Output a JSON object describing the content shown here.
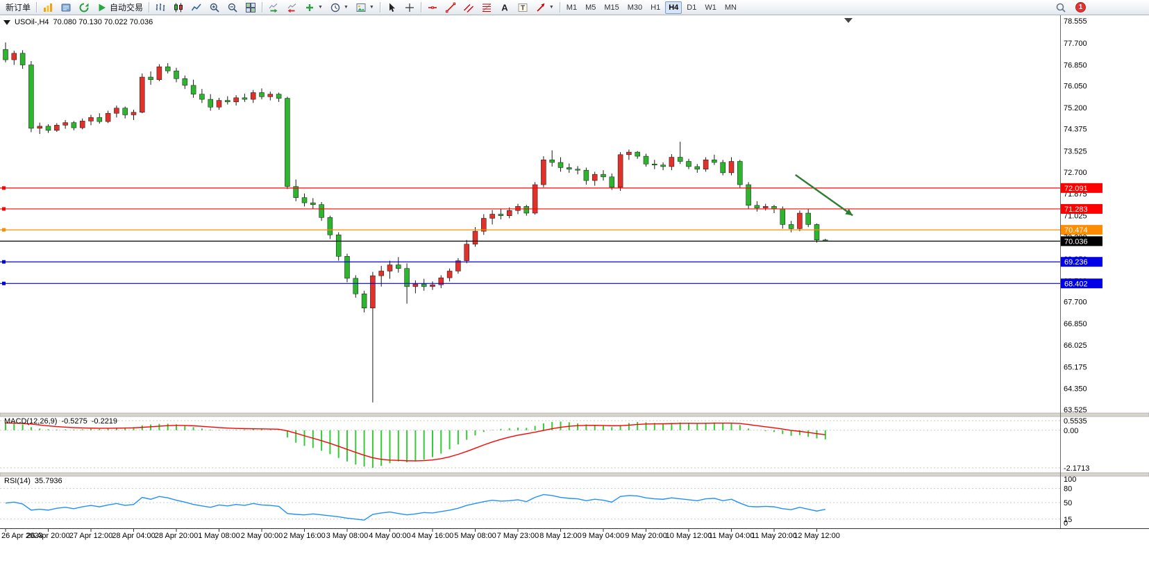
{
  "toolbar": {
    "notification_count": "1",
    "timeframes": [
      "M1",
      "M5",
      "M15",
      "M30",
      "H1",
      "H4",
      "D1",
      "W1",
      "MN"
    ],
    "active_timeframe": "H4",
    "groups": [
      {
        "items": [
          {
            "name": "new-order-button",
            "label": "新订单"
          }
        ]
      },
      {
        "items": [
          {
            "name": "new-chart-button",
            "icon": "new-chart-icon"
          },
          {
            "name": "profiles-button",
            "icon": "profiles-icon"
          },
          {
            "name": "refresh-button",
            "icon": "refresh-icon"
          },
          {
            "name": "autotrading-button",
            "label": "自动交易",
            "icon": "play-icon"
          }
        ]
      },
      {
        "items": [
          {
            "name": "bar-chart-button",
            "icon": "bar-chart-icon"
          },
          {
            "name": "candlestick-button",
            "icon": "candlestick-icon"
          },
          {
            "name": "line-chart-button",
            "icon": "line-chart-icon"
          },
          {
            "name": "zoom-in-button",
            "icon": "zoom-in-icon"
          },
          {
            "name": "zoom-out-button",
            "icon": "zoom-out-icon"
          },
          {
            "name": "tile-windows-button",
            "icon": "tile-windows-icon"
          }
        ]
      },
      {
        "items": [
          {
            "name": "auto-scroll-button",
            "icon": "auto-scroll-icon"
          },
          {
            "name": "chart-shift-button",
            "icon": "chart-shift-icon"
          },
          {
            "name": "indicators-button",
            "icon": "indicators-add-icon",
            "dropdown": true
          },
          {
            "name": "periods-button",
            "icon": "periods-clock-icon",
            "dropdown": true
          },
          {
            "name": "templates-button",
            "icon": "templates-icon",
            "dropdown": true
          }
        ]
      },
      {
        "items": [
          {
            "name": "cursor-button",
            "icon": "cursor-icon"
          },
          {
            "name": "crosshair-button",
            "icon": "crosshair-icon"
          }
        ]
      },
      {
        "items": [
          {
            "name": "horizontal-line-button",
            "icon": "horizontal-line-icon"
          },
          {
            "name": "trendline-button",
            "icon": "trendline-icon"
          },
          {
            "name": "channel-button",
            "icon": "channel-icon"
          },
          {
            "name": "fibonacci-button",
            "icon": "fibonacci-icon"
          },
          {
            "name": "text-button",
            "icon": "text-icon"
          },
          {
            "name": "text-label-button",
            "icon": "text-label-icon"
          },
          {
            "name": "arrows-button",
            "icon": "arrows-icon",
            "dropdown": true
          }
        ]
      }
    ]
  },
  "chart": {
    "title": "USOil-,H4",
    "ohlc_text": "70.080 70.130 70.022 70.036"
  },
  "chart_data": {
    "type": "candlestick",
    "symbol": "USOil-",
    "period": "H4",
    "open": 70.08,
    "high": 70.13,
    "low": 70.022,
    "close": 70.036,
    "colors": {
      "up_candle": "#E0312B",
      "down_candle": "#2DB52D",
      "wick": "#1a1a1a"
    },
    "price_axis_ticks": [
      "78.555",
      "77.700",
      "76.850",
      "76.050",
      "75.200",
      "74.375",
      "73.525",
      "72.700",
      "71.875",
      "71.025",
      "70.200",
      "69.350",
      "68.500",
      "67.700",
      "66.850",
      "66.025",
      "65.175",
      "64.350",
      "63.525"
    ],
    "time_axis_labels": [
      "26 Apr 2023",
      "26 Apr 20:00",
      "27 Apr 12:00",
      "28 Apr 04:00",
      "28 Apr 20:00",
      "1 May 08:00",
      "2 May 00:00",
      "2 May 16:00",
      "3 May 08:00",
      "4 May 00:00",
      "4 May 16:00",
      "5 May 08:00",
      "7 May 23:00",
      "8 May 12:00",
      "9 May 04:00",
      "9 May 20:00",
      "10 May 12:00",
      "11 May 04:00",
      "11 May 20:00",
      "12 May 12:00"
    ],
    "candles": [
      [
        77.45,
        77.72,
        76.95,
        77.05
      ],
      [
        77.05,
        77.4,
        76.85,
        77.3
      ],
      [
        77.3,
        77.42,
        76.7,
        76.85
      ],
      [
        76.85,
        77.0,
        74.25,
        74.4
      ],
      [
        74.4,
        74.62,
        74.18,
        74.48
      ],
      [
        74.48,
        74.56,
        74.22,
        74.32
      ],
      [
        74.32,
        74.6,
        74.26,
        74.52
      ],
      [
        74.52,
        74.72,
        74.38,
        74.62
      ],
      [
        74.62,
        74.68,
        74.32,
        74.42
      ],
      [
        74.42,
        74.78,
        74.36,
        74.68
      ],
      [
        74.68,
        74.92,
        74.52,
        74.82
      ],
      [
        74.82,
        74.98,
        74.58,
        74.66
      ],
      [
        74.66,
        75.08,
        74.6,
        74.98
      ],
      [
        74.98,
        75.28,
        74.82,
        75.18
      ],
      [
        75.18,
        75.24,
        74.78,
        74.92
      ],
      [
        74.92,
        75.12,
        74.72,
        75.02
      ],
      [
        75.02,
        76.52,
        74.98,
        76.38
      ],
      [
        76.38,
        76.6,
        76.08,
        76.28
      ],
      [
        76.28,
        76.88,
        76.22,
        76.78
      ],
      [
        76.78,
        76.92,
        76.52,
        76.62
      ],
      [
        76.62,
        76.74,
        76.18,
        76.32
      ],
      [
        76.32,
        76.44,
        75.92,
        76.06
      ],
      [
        76.06,
        76.28,
        75.58,
        75.72
      ],
      [
        75.72,
        75.92,
        75.38,
        75.52
      ],
      [
        75.52,
        75.72,
        75.08,
        75.22
      ],
      [
        75.22,
        75.58,
        75.12,
        75.48
      ],
      [
        75.48,
        75.64,
        75.32,
        75.42
      ],
      [
        75.42,
        75.68,
        75.28,
        75.58
      ],
      [
        75.58,
        75.74,
        75.42,
        75.52
      ],
      [
        75.52,
        75.88,
        75.38,
        75.78
      ],
      [
        75.78,
        75.94,
        75.52,
        75.62
      ],
      [
        75.62,
        75.82,
        75.48,
        75.72
      ],
      [
        75.72,
        75.78,
        75.42,
        75.56
      ],
      [
        75.56,
        75.62,
        72.05,
        72.15
      ],
      [
        72.15,
        72.42,
        71.58,
        71.72
      ],
      [
        71.72,
        71.88,
        71.38,
        71.52
      ],
      [
        71.52,
        71.7,
        71.28,
        71.45
      ],
      [
        71.45,
        71.55,
        70.82,
        70.95
      ],
      [
        70.95,
        71.02,
        70.12,
        70.28
      ],
      [
        70.28,
        70.38,
        69.28,
        69.45
      ],
      [
        69.45,
        69.55,
        68.45,
        68.6
      ],
      [
        68.6,
        68.72,
        67.85,
        68.0
      ],
      [
        68.0,
        68.12,
        67.28,
        67.45
      ],
      [
        67.45,
        68.85,
        63.8,
        68.7
      ],
      [
        68.7,
        69.08,
        68.28,
        68.88
      ],
      [
        68.88,
        69.28,
        68.58,
        69.12
      ],
      [
        69.12,
        69.42,
        68.82,
        68.98
      ],
      [
        68.98,
        69.18,
        67.62,
        68.28
      ],
      [
        68.28,
        68.52,
        68.02,
        68.38
      ],
      [
        68.38,
        68.58,
        68.12,
        68.28
      ],
      [
        68.28,
        68.48,
        68.15,
        68.35
      ],
      [
        68.35,
        68.72,
        68.22,
        68.62
      ],
      [
        68.62,
        68.98,
        68.48,
        68.88
      ],
      [
        68.88,
        69.38,
        68.78,
        69.28
      ],
      [
        69.28,
        70.08,
        69.18,
        69.92
      ],
      [
        69.92,
        70.58,
        69.82,
        70.42
      ],
      [
        70.42,
        71.08,
        70.28,
        70.92
      ],
      [
        70.92,
        71.24,
        70.68,
        71.08
      ],
      [
        71.08,
        71.28,
        70.88,
        71.02
      ],
      [
        71.02,
        71.34,
        70.92,
        71.22
      ],
      [
        71.22,
        71.48,
        71.08,
        71.38
      ],
      [
        71.38,
        71.44,
        71.02,
        71.12
      ],
      [
        71.12,
        72.32,
        71.06,
        72.22
      ],
      [
        72.22,
        73.32,
        72.12,
        73.18
      ],
      [
        73.18,
        73.55,
        72.92,
        73.08
      ],
      [
        73.08,
        73.28,
        72.72,
        72.88
      ],
      [
        72.88,
        73.04,
        72.68,
        72.82
      ],
      [
        72.82,
        72.94,
        72.62,
        72.78
      ],
      [
        72.78,
        72.88,
        72.22,
        72.38
      ],
      [
        72.38,
        72.72,
        72.18,
        72.62
      ],
      [
        72.62,
        72.78,
        72.38,
        72.52
      ],
      [
        72.52,
        72.65,
        72.02,
        72.12
      ],
      [
        72.12,
        73.48,
        71.98,
        73.38
      ],
      [
        73.38,
        73.58,
        73.18,
        73.48
      ],
      [
        73.48,
        73.52,
        73.22,
        73.32
      ],
      [
        73.32,
        73.42,
        72.92,
        73.02
      ],
      [
        73.02,
        73.18,
        72.82,
        72.98
      ],
      [
        72.98,
        73.08,
        72.78,
        72.92
      ],
      [
        72.92,
        73.4,
        72.78,
        73.28
      ],
      [
        73.28,
        73.88,
        73.02,
        73.12
      ],
      [
        73.12,
        73.22,
        72.82,
        72.92
      ],
      [
        72.92,
        73.02,
        72.68,
        72.82
      ],
      [
        72.82,
        73.28,
        72.72,
        73.18
      ],
      [
        73.18,
        73.38,
        72.98,
        73.08
      ],
      [
        73.08,
        73.18,
        72.58,
        72.68
      ],
      [
        72.68,
        73.28,
        72.58,
        73.12
      ],
      [
        73.12,
        73.18,
        72.08,
        72.22
      ],
      [
        72.22,
        72.32,
        71.28,
        71.42
      ],
      [
        71.42,
        71.58,
        71.18,
        71.32
      ],
      [
        71.32,
        71.48,
        71.22,
        71.38
      ],
      [
        71.38,
        71.44,
        71.12,
        71.28
      ],
      [
        71.28,
        71.38,
        70.52,
        70.68
      ],
      [
        70.68,
        70.82,
        70.38,
        70.52
      ],
      [
        70.52,
        71.22,
        70.42,
        71.12
      ],
      [
        71.12,
        71.28,
        70.58,
        70.68
      ],
      [
        70.68,
        70.72,
        69.98,
        70.08
      ],
      [
        70.08,
        70.13,
        70.022,
        70.036
      ]
    ],
    "horizontal_lines": [
      {
        "price": 72.091,
        "label": "72.091",
        "color": "#FF0000"
      },
      {
        "price": 71.283,
        "label": "71.283",
        "color": "#FF0000"
      },
      {
        "price": 70.474,
        "label": "70.474",
        "color": "#FF8C00"
      },
      {
        "price": 70.036,
        "label": "70.036",
        "color": "#000000",
        "type": "current-price"
      },
      {
        "price": 69.236,
        "label": "69.236",
        "color": "#0000E6"
      },
      {
        "price": 68.402,
        "label": "68.402",
        "color": "#0000E6"
      }
    ],
    "trend_arrow": {
      "from_bar": 92.5,
      "from_price": 72.6,
      "to_bar": 99.2,
      "to_price": 71.03,
      "color": "#2E7D32"
    },
    "indicators": {
      "macd": {
        "label": "MACD(12,26,9)",
        "main_value": "-0.5275",
        "signal_value": "-0.2219",
        "axis_ticks": [
          "0.5535",
          "0.00",
          "-2.1713"
        ],
        "axis_values": [
          0.5535,
          0,
          -2.1713
        ],
        "histogram_color": "#32CD32",
        "signal_color": "#FF0000",
        "histogram": [
          0.42,
          0.38,
          0.34,
          0.18,
          0.1,
          0.06,
          0.04,
          0.05,
          0.04,
          0.06,
          0.08,
          0.08,
          0.11,
          0.15,
          0.16,
          0.18,
          0.28,
          0.33,
          0.37,
          0.38,
          0.34,
          0.27,
          0.18,
          0.1,
          0.04,
          0.02,
          0.01,
          0.02,
          0.04,
          0.06,
          0.05,
          0.04,
          0.02,
          -0.42,
          -0.72,
          -0.9,
          -1.02,
          -1.18,
          -1.38,
          -1.6,
          -1.8,
          -1.98,
          -2.1,
          -2.17,
          -2.05,
          -1.9,
          -1.8,
          -1.85,
          -1.8,
          -1.7,
          -1.55,
          -1.35,
          -1.1,
          -0.82,
          -0.55,
          -0.3,
          -0.1,
          0.02,
          0.08,
          0.12,
          0.15,
          0.14,
          0.25,
          0.4,
          0.48,
          0.5,
          0.46,
          0.4,
          0.34,
          0.3,
          0.25,
          0.18,
          0.3,
          0.42,
          0.48,
          0.46,
          0.42,
          0.38,
          0.42,
          0.45,
          0.42,
          0.38,
          0.42,
          0.45,
          0.4,
          0.42,
          0.3,
          0.1,
          0.0,
          -0.05,
          -0.1,
          -0.22,
          -0.32,
          -0.28,
          -0.38,
          -0.47,
          -0.5275
        ]
      },
      "rsi": {
        "label": "RSI(14)",
        "value": "35.7936",
        "axis_ticks": [
          "100",
          "80",
          "50",
          "15",
          "0"
        ],
        "levels": [
          80,
          50,
          15
        ],
        "line_color": "#1E90FF",
        "values": [
          49,
          51,
          47,
          34,
          36,
          34,
          38,
          40,
          37,
          41,
          44,
          41,
          45,
          48,
          44,
          46,
          61,
          57,
          63,
          60,
          55,
          51,
          46,
          43,
          40,
          45,
          43,
          46,
          44,
          48,
          45,
          44,
          42,
          27,
          25,
          24,
          26,
          24,
          22,
          20,
          17,
          15,
          13,
          25,
          28,
          30,
          27,
          24,
          26,
          29,
          28,
          31,
          34,
          38,
          44,
          48,
          52,
          55,
          53,
          54,
          56,
          52,
          61,
          67,
          65,
          61,
          59,
          58,
          54,
          57,
          55,
          51,
          63,
          65,
          64,
          60,
          58,
          57,
          60,
          58,
          56,
          54,
          58,
          59,
          54,
          57,
          49,
          42,
          41,
          42,
          41,
          37,
          35,
          40,
          36,
          32,
          35.79
        ]
      }
    }
  }
}
